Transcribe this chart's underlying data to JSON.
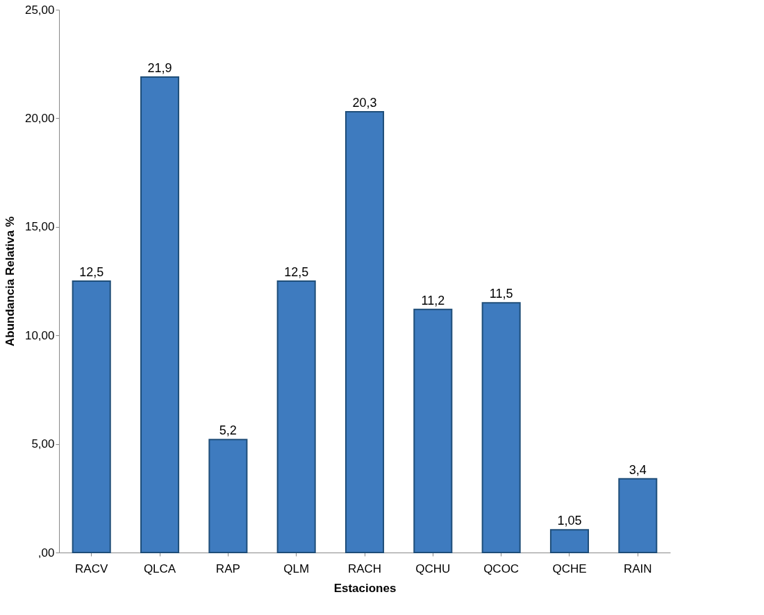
{
  "chart_data": {
    "type": "bar",
    "xlabel": "Estaciones",
    "ylabel": "Abundancia Relativa %",
    "categories": [
      "RACV",
      "QLCA",
      "RAP",
      "QLM",
      "RACH",
      "QCHU",
      "QCOC",
      "QCHE",
      "RAIN"
    ],
    "values": [
      12.5,
      21.9,
      5.2,
      12.5,
      20.3,
      11.2,
      11.5,
      1.05,
      3.4
    ],
    "value_labels": [
      "12,5",
      "21,9",
      "5,2",
      "12,5",
      "20,3",
      "11,2",
      "11,5",
      "1,05",
      "3,4"
    ],
    "color": "#3e7bbf",
    "ylim": [
      0,
      25
    ],
    "yticks": [
      {
        "value": 0,
        "label": ",00"
      },
      {
        "value": 5,
        "label": "5,00"
      },
      {
        "value": 10,
        "label": "10,00"
      },
      {
        "value": 15,
        "label": "15,00"
      },
      {
        "value": 20,
        "label": "20,00"
      },
      {
        "value": 25,
        "label": "25,00"
      }
    ],
    "grid": false
  }
}
